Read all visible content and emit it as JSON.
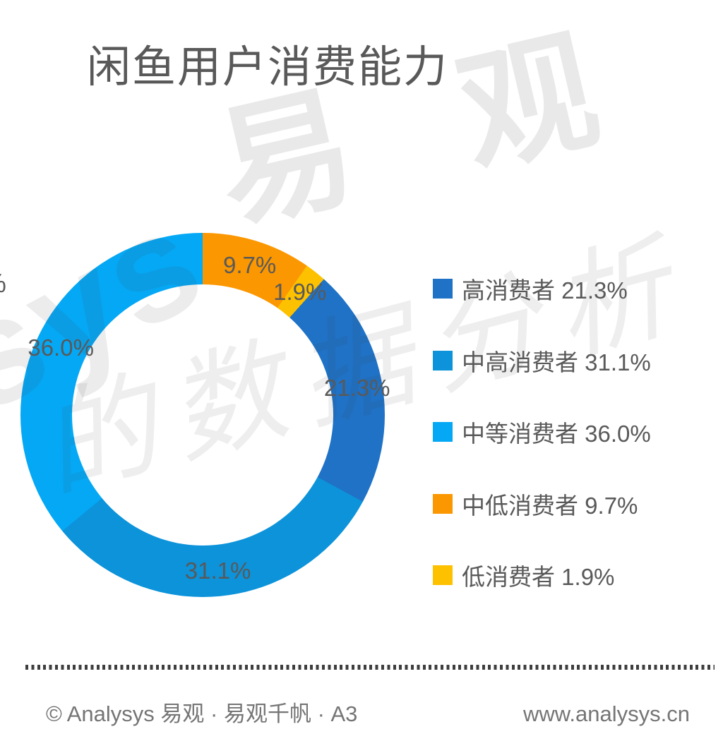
{
  "title": "闲鱼用户消费能力",
  "chart_data": {
    "type": "pie",
    "title": "闲鱼用户消费能力",
    "donut": true,
    "unit": "%",
    "slices": [
      {
        "label": "高消费者",
        "value": 21.3,
        "display": "21.3%",
        "color": "#1F72C6"
      },
      {
        "label": "中高消费者",
        "value": 31.1,
        "display": "31.1%",
        "color": "#0C93DA"
      },
      {
        "label": "中等消费者",
        "value": 36.0,
        "display": "36.0%",
        "color": "#05A8F5"
      },
      {
        "label": "中低消费者",
        "value": 9.7,
        "display": "9.7%",
        "color": "#FB9700"
      },
      {
        "label": "低消费者",
        "value": 1.9,
        "display": "1.9%",
        "color": "#FDC100"
      }
    ],
    "draw_order_clockwise_from_top": [
      3,
      4,
      0,
      1,
      2
    ],
    "legend_position": "right",
    "label_color": "#595959"
  },
  "clipped_label": "%",
  "watermark": {
    "brand_cn": "易 观",
    "latin": "sys",
    "script": "的数据分析"
  },
  "footer": {
    "left": "© Analysys 易观 · 易观千帆 · A3",
    "right": "www.analysys.cn"
  }
}
